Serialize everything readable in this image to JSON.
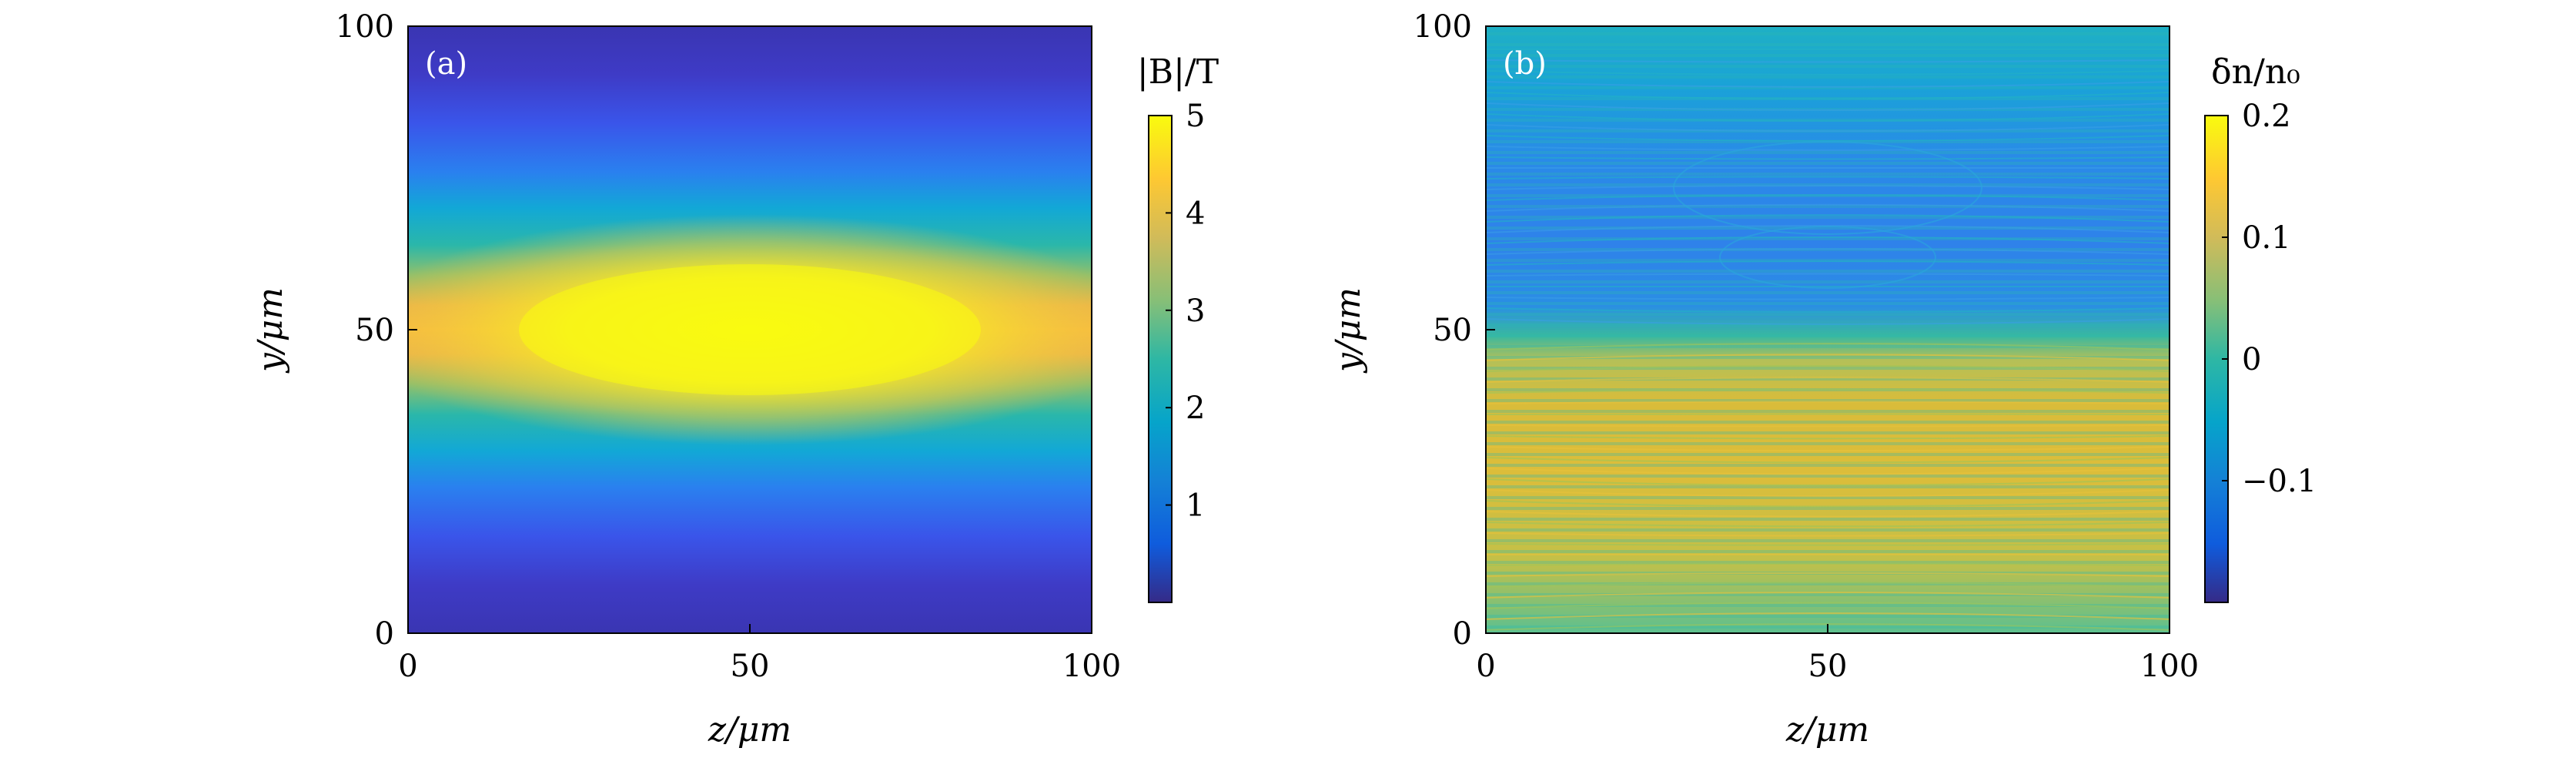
{
  "chart_data": [
    {
      "type": "heatmap",
      "panel_label": "(a)",
      "xlabel": "z/μm",
      "ylabel": "y/μm",
      "xlim": [
        0,
        100
      ],
      "ylim": [
        0,
        100
      ],
      "xticks": [
        "0",
        "50",
        "100"
      ],
      "yticks": [
        "0",
        "50",
        "100"
      ],
      "colorbar": {
        "title": "|B|/T",
        "range": [
          0,
          5
        ],
        "ticks": [
          "1",
          "2",
          "3",
          "4",
          "5"
        ],
        "colormap": "parula"
      },
      "field": {
        "description_values": {
          "peak_value": 5,
          "peak_location": {
            "z": 50,
            "y": 50
          },
          "center_z": 50,
          "center_y": 50,
          "edge_value_at_y_center_z0": 4.1,
          "min_value": 0.1
        }
      }
    },
    {
      "type": "heatmap",
      "panel_label": "(b)",
      "xlabel": "z/μm",
      "ylabel": "y/μm",
      "xlim": [
        0,
        100
      ],
      "ylim": [
        0,
        100
      ],
      "xticks": [
        "0",
        "50",
        "100"
      ],
      "yticks": [
        "0",
        "50",
        "100"
      ],
      "colorbar": {
        "title": "δn/n₀",
        "range": [
          -0.2,
          0.2
        ],
        "ticks": [
          "−0.1",
          "0",
          "0.1",
          "0.2"
        ],
        "colormap": "parula"
      },
      "field": {
        "description_values": {
          "upper_half_mean": -0.1,
          "lower_half_mean": 0.14,
          "boundary_y": 47,
          "oscillation_max": 0.2,
          "oscillation_min": -0.2
        }
      }
    }
  ]
}
